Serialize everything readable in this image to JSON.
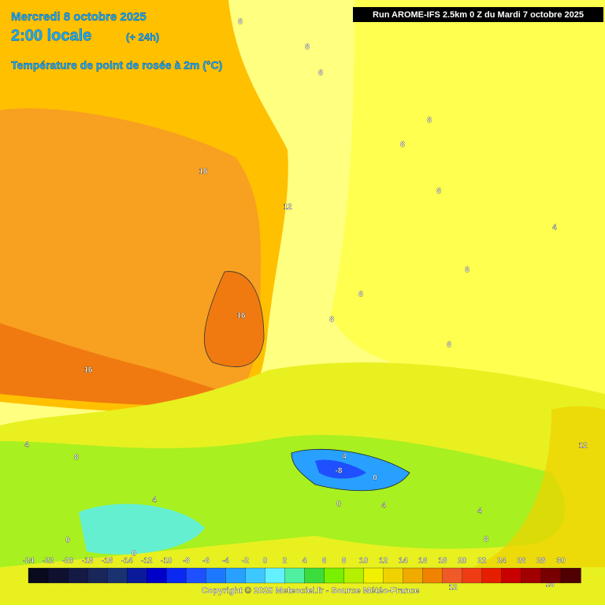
{
  "header": {
    "date": "Mercredi 8 octobre 2025",
    "time": "2:00 locale",
    "lead": "(+ 24h)",
    "variable": "Température de point de rosée à 2m (°C)"
  },
  "run": "Run AROME-IFS 2.5km 0 Z du Mardi 7 octobre 2025",
  "colorbar": {
    "ticks": [
      -24,
      -22,
      -20,
      -18,
      -16,
      -14,
      -12,
      -10,
      -8,
      -6,
      -4,
      -2,
      0,
      2,
      4,
      6,
      8,
      10,
      12,
      14,
      16,
      18,
      20,
      22,
      24,
      26,
      28,
      30
    ],
    "colors": [
      "#0a0a1e",
      "#101030",
      "#141a44",
      "#18265a",
      "#1a3270",
      "#0a1a9a",
      "#0000c8",
      "#0a28f0",
      "#1e50ff",
      "#1e78ff",
      "#28a0ff",
      "#3cc8ff",
      "#64f0ff",
      "#50f0a0",
      "#3cdc3c",
      "#78f000",
      "#b4f000",
      "#f0f000",
      "#f0d200",
      "#f0aa00",
      "#f08200",
      "#f05a28",
      "#f03c14",
      "#e61e00",
      "#c80000",
      "#a00000",
      "#780000",
      "#500000"
    ]
  },
  "contour_labels": [
    16,
    12,
    16,
    16,
    8,
    8,
    8,
    8,
    8,
    8,
    8,
    4,
    4,
    8,
    4,
    0,
    0,
    4,
    -8,
    0,
    0,
    4,
    4,
    8,
    12,
    12,
    16,
    8,
    8,
    8
  ],
  "copyright": "Copyright © 2025 Meteociel.fr - Source Météo-France"
}
